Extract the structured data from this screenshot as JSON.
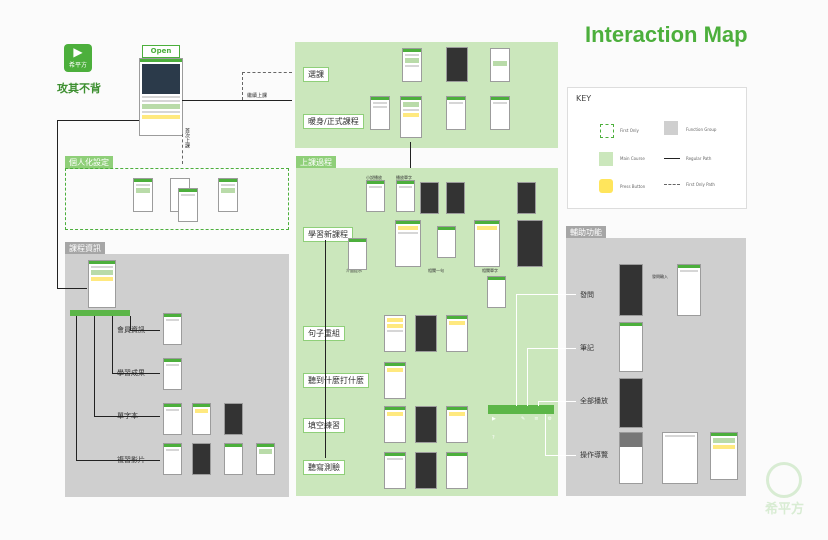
{
  "title": "Interaction Map",
  "logo": {
    "text": "希平方"
  },
  "slogan": "攻其不背",
  "open_label": "Open",
  "key": {
    "title": "KEY",
    "items": [
      "First Only",
      "Function Group",
      "Main Course",
      "Regular Path",
      "Press Button",
      "First Only Path"
    ]
  },
  "sections": {
    "personal": "個人化設定",
    "course_info": "課程資訊",
    "in_class": "上課過程",
    "aux": "輔助功能"
  },
  "top_nodes": {
    "select": "選課",
    "warmup": "暖身/正式課程",
    "continue": "繼續上課",
    "first": "首次上課"
  },
  "class_nodes": [
    "學習新課程",
    "句子重組",
    "聽到什麼打什麼",
    "填空練習",
    "聽寫測驗"
  ],
  "info_nodes": [
    "會員資訊",
    "學習成果",
    "單字本",
    "複習影片"
  ],
  "aux_nodes": [
    "發問",
    "筆記",
    "全部播放",
    "操作導覽"
  ],
  "small_labels": {
    "a": "小說播放",
    "b": "播放單字",
    "c": "介面提示",
    "d": "相關一句",
    "e": "相關單字",
    "f": "發問輸入"
  },
  "bottom_logo": "希平方"
}
